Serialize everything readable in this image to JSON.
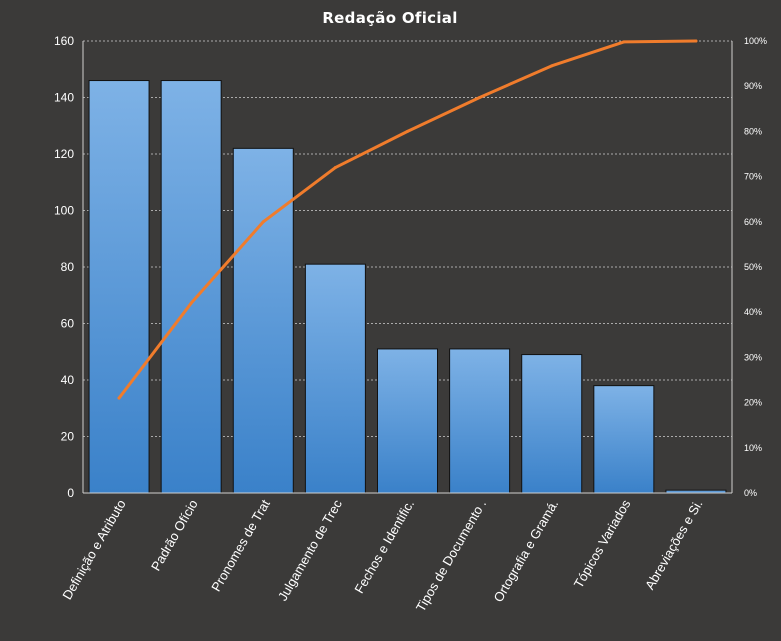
{
  "chart_data": {
    "type": "bar",
    "title": "Redação Oficial",
    "categories": [
      "Definição e Atributo",
      "Padrão Ofício",
      "Pronomes  de Trat",
      "Julgamento de Trec",
      "Fechos e Identific.",
      "Tipos de Documento .",
      "Ortografia e Gramá.",
      "Tópicos Variados",
      "Abreviações e Si."
    ],
    "series": [
      {
        "type": "bar",
        "values": [
          146,
          146,
          122,
          81,
          51,
          51,
          49,
          38,
          1
        ]
      },
      {
        "type": "line",
        "axis": "right",
        "values": [
          0.21,
          0.42,
          0.6,
          0.72,
          0.8,
          0.875,
          0.945,
          0.998,
          1.0
        ]
      }
    ],
    "y_left": {
      "min": 0,
      "max": 160,
      "ticks": [
        "0",
        "20",
        "40",
        "60",
        "80",
        "100",
        "120",
        "140",
        "160"
      ]
    },
    "y_right": {
      "min": 0,
      "max": 1,
      "ticks": [
        "0%",
        "10%",
        "20%",
        "30%",
        "40%",
        "50%",
        "60%",
        "70%",
        "80%",
        "90%",
        "100%"
      ]
    },
    "grid": true,
    "legend": "none",
    "colors": {
      "background": "#3b3a39",
      "bar_top": "#7eb2e6",
      "bar_bottom": "#3a81c9",
      "line": "#f07c2c",
      "grid": "#bfbfbf",
      "text": "#ffffff"
    }
  }
}
